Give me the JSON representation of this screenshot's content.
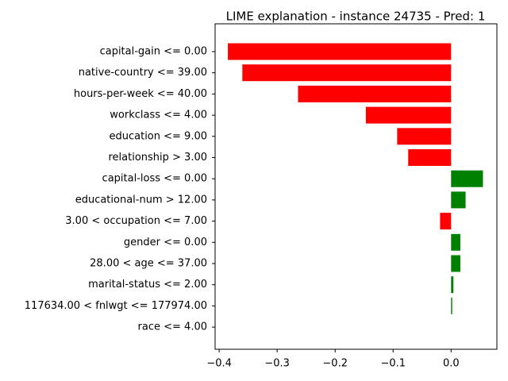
{
  "chart_data": {
    "type": "barh",
    "title": "LIME explanation - instance 24735 - Pred: 1",
    "categories": [
      "capital-gain <= 0.00",
      "native-country <= 39.00",
      "hours-per-week <= 40.00",
      "workclass <= 4.00",
      "education <= 9.00",
      "relationship > 3.00",
      "capital-loss <= 0.00",
      "educational-num > 12.00",
      "3.00 < occupation <= 7.00",
      "gender <= 0.00",
      "28.00 < age <= 37.00",
      "marital-status <= 2.00",
      "117634.00 < fnlwgt <= 177974.00",
      "race <= 4.00"
    ],
    "values": [
      -0.385,
      -0.36,
      -0.264,
      -0.147,
      -0.093,
      -0.074,
      0.055,
      0.025,
      -0.019,
      0.016,
      0.016,
      0.004,
      0.002,
      0
    ],
    "colors": [
      "red",
      "red",
      "red",
      "red",
      "red",
      "red",
      "green",
      "green",
      "red",
      "green",
      "green",
      "green",
      "green",
      "green"
    ],
    "xlim": [
      -0.407,
      0.079
    ],
    "xticks": [
      {
        "value": -0.4,
        "label": "−0.4"
      },
      {
        "value": -0.3,
        "label": "−0.3"
      },
      {
        "value": -0.2,
        "label": "−0.2"
      },
      {
        "value": -0.1,
        "label": "−0.1"
      },
      {
        "value": 0,
        "label": "0.0"
      }
    ]
  }
}
